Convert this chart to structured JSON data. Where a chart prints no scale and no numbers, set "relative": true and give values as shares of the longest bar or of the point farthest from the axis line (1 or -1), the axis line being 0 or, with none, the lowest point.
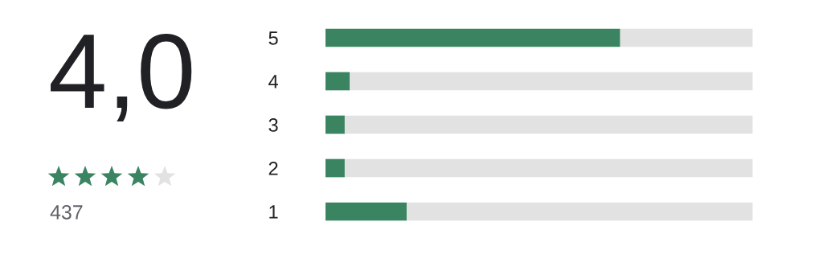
{
  "chart_data": [
    {
      "type": "other",
      "annotations": [
        "4,0",
        "437"
      ]
    },
    {
      "type": "bar",
      "orientation": "horizontal",
      "stacked": true,
      "relative": true,
      "categories": [
        "5",
        "4",
        "3",
        "2",
        "1"
      ],
      "series": [
        {
          "color": "#3b8462",
          "values": [
            0.69,
            0.057,
            0.045,
            0.045,
            0.19
          ]
        },
        {
          "color": "#e2e2e2",
          "values": [
            0.31,
            0.943,
            0.955,
            0.955,
            0.81
          ]
        }
      ]
    }
  ]
}
